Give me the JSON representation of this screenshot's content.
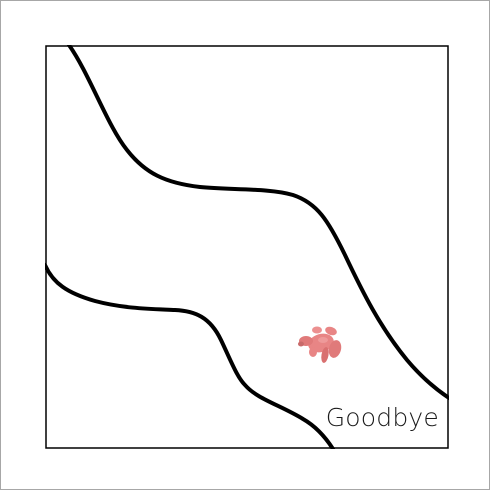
{
  "scene": {
    "caption": "Goodbye",
    "colors": {
      "frame": "#000000",
      "curve": "#000000",
      "sprite": "#e88585",
      "sprite_shadow": "#c86a6a",
      "background": "#ffffff"
    },
    "sprite_icon": "pink-creature-icon"
  }
}
